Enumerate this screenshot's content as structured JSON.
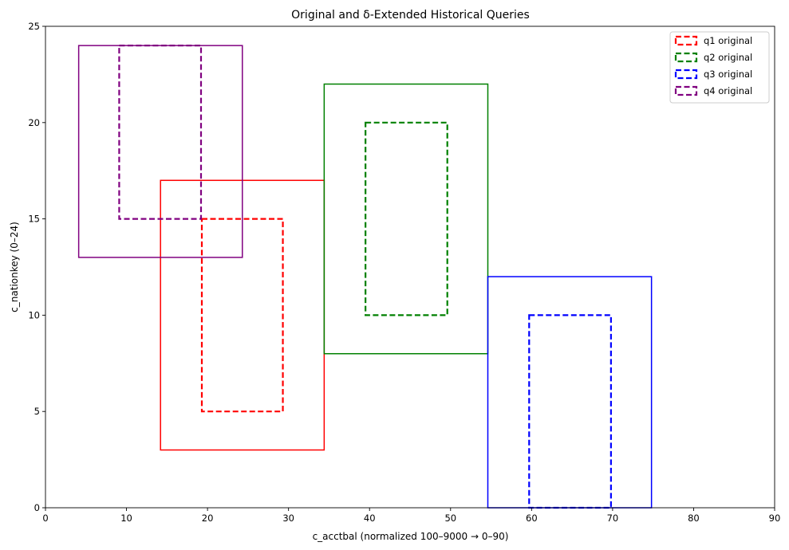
{
  "chart_data": {
    "type": "rectangles",
    "title": "Original and δ-Extended Historical Queries",
    "xlabel": "c_acctbal (normalized 100–9000 → 0–90)",
    "ylabel": "c_nationkey (0–24)",
    "xlim": [
      0,
      90
    ],
    "ylim": [
      0,
      25
    ],
    "xticks": [
      0,
      10,
      20,
      30,
      40,
      50,
      60,
      70,
      80,
      90
    ],
    "yticks": [
      0,
      5,
      10,
      15,
      20,
      25
    ],
    "grid": false,
    "legend_position": "top-right",
    "series": [
      {
        "name": "q1 original",
        "color": "#ff0000",
        "original": {
          "x0": 19.3,
          "x1": 29.3,
          "y0": 5,
          "y1": 15
        },
        "extended": {
          "x0": 14.2,
          "x1": 34.4,
          "y0": 3,
          "y1": 17
        }
      },
      {
        "name": "q2 original",
        "color": "#008000",
        "original": {
          "x0": 39.5,
          "x1": 49.6,
          "y0": 10,
          "y1": 20
        },
        "extended": {
          "x0": 34.4,
          "x1": 54.6,
          "y0": 8,
          "y1": 22
        }
      },
      {
        "name": "q3 original",
        "color": "#0000ff",
        "original": {
          "x0": 59.7,
          "x1": 69.8,
          "y0": 0,
          "y1": 10
        },
        "extended": {
          "x0": 54.6,
          "x1": 74.8,
          "y0": 0,
          "y1": 12
        }
      },
      {
        "name": "q4 original",
        "color": "#800080",
        "original": {
          "x0": 9.1,
          "x1": 19.2,
          "y0": 15,
          "y1": 24
        },
        "extended": {
          "x0": 4.1,
          "x1": 24.3,
          "y0": 13,
          "y1": 24
        }
      }
    ]
  }
}
